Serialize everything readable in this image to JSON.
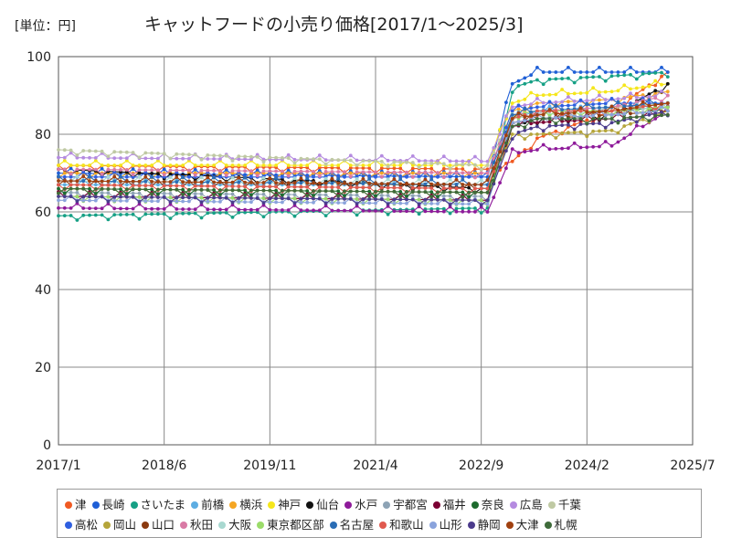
{
  "unit_label": "[単位：円]",
  "chart_data": {
    "type": "line",
    "title": "キャットフードの小売り価格[2017/1～2025/3]",
    "xlabel": "",
    "ylabel": "",
    "ylim": [
      0,
      100
    ],
    "yticks": [
      0,
      20,
      40,
      60,
      80,
      100
    ],
    "xlim": [
      "2017-01",
      "2025-07"
    ],
    "xticks": [
      "2017/1",
      "2018/6",
      "2019/11",
      "2021/4",
      "2022/9",
      "2024/2",
      "2025/7"
    ],
    "grid": true,
    "legend_position": "bottom",
    "markers": true,
    "series_breakpoints_x": [
      "2017-01",
      "2022-10",
      "2023-02",
      "2023-06",
      "2024-06",
      "2025-03"
    ],
    "series": [
      {
        "name": "津",
        "color": "#f05a22",
        "values": [
          72,
          71,
          73,
          79,
          86,
          96
        ]
      },
      {
        "name": "長崎",
        "color": "#1f5fd6",
        "values": [
          70,
          69,
          93,
          96,
          96,
          96
        ]
      },
      {
        "name": "さいたま",
        "color": "#16a085",
        "values": [
          59,
          61,
          92,
          94,
          95,
          96
        ]
      },
      {
        "name": "前橋",
        "color": "#5dade2",
        "values": [
          67,
          67,
          84,
          86,
          86,
          87
        ]
      },
      {
        "name": "横浜",
        "color": "#f5a623",
        "values": [
          70,
          70,
          86,
          88,
          89,
          91
        ]
      },
      {
        "name": "神戸",
        "color": "#f5e61b",
        "values": [
          72,
          72,
          88,
          90,
          91,
          93
        ]
      },
      {
        "name": "仙台",
        "color": "#111111",
        "values": [
          71,
          66,
          82,
          84,
          85,
          93
        ]
      },
      {
        "name": "水戸",
        "color": "#8e1a9a",
        "values": [
          61,
          60,
          75,
          76,
          77,
          86
        ]
      },
      {
        "name": "宇都宮",
        "color": "#8da3b5",
        "values": [
          65,
          64,
          83,
          84,
          86,
          87
        ]
      },
      {
        "name": "福井",
        "color": "#7b0033",
        "values": [
          64,
          63,
          82,
          83,
          84,
          85
        ]
      },
      {
        "name": "奈良",
        "color": "#1e6b2e",
        "values": [
          66,
          65,
          84,
          86,
          86,
          87
        ]
      },
      {
        "name": "広島",
        "color": "#b58be0",
        "values": [
          74,
          73,
          87,
          88,
          89,
          90
        ]
      },
      {
        "name": "千葉",
        "color": "#bfc9a3",
        "values": [
          76,
          72,
          85,
          86,
          87,
          88
        ]
      },
      {
        "name": "高松",
        "color": "#2e5fe0",
        "values": [
          69,
          69,
          86,
          87,
          88,
          88
        ]
      },
      {
        "name": "岡山",
        "color": "#b5a53a",
        "values": [
          66,
          65,
          80,
          80,
          81,
          86
        ]
      },
      {
        "name": "山口",
        "color": "#8b3a0f",
        "values": [
          67,
          66,
          83,
          84,
          85,
          86
        ]
      },
      {
        "name": "秋田",
        "color": "#d97aa5",
        "values": [
          71,
          70,
          85,
          86,
          87,
          90
        ]
      },
      {
        "name": "大阪",
        "color": "#a8d8d0",
        "values": [
          68,
          67,
          84,
          85,
          86,
          87
        ]
      },
      {
        "name": "東京都区部",
        "color": "#9bdc6a",
        "values": [
          64,
          63,
          85,
          86,
          86,
          87
        ]
      },
      {
        "name": "名古屋",
        "color": "#2a6db5",
        "values": [
          68,
          67,
          85,
          86,
          87,
          88
        ]
      },
      {
        "name": "和歌山",
        "color": "#e05a4f",
        "values": [
          67,
          66,
          84,
          86,
          86,
          88
        ]
      },
      {
        "name": "山形",
        "color": "#8aa3dc",
        "values": [
          63,
          62,
          83,
          84,
          85,
          86
        ]
      },
      {
        "name": "静岡",
        "color": "#4b3b8c",
        "values": [
          64,
          63,
          80,
          82,
          83,
          86
        ]
      },
      {
        "name": "大津",
        "color": "#a0400f",
        "values": [
          68,
          67,
          84,
          85,
          86,
          88
        ]
      },
      {
        "name": "札幌",
        "color": "#3e6b3a",
        "values": [
          66,
          65,
          82,
          84,
          84,
          85
        ]
      }
    ]
  }
}
